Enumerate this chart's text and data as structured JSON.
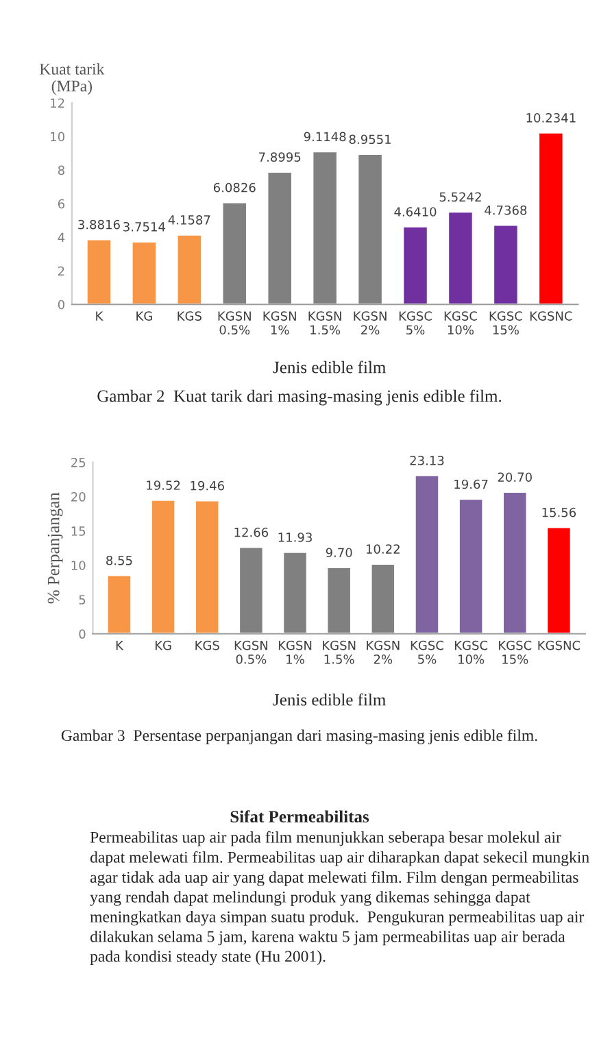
{
  "chart_data": [
    {
      "type": "bar",
      "ylabel": "Kuat tarik\n(MPa)",
      "xlabel": "Jenis edible film",
      "categories": [
        "K",
        "KG",
        "KGS",
        "KGSN\n0.5%",
        "KGSN\n1%",
        "KGSN\n1.5%",
        "KGSN\n2%",
        "KGSC\n5%",
        "KGSC\n10%",
        "KGSC\n15%",
        "KGSNC"
      ],
      "values": [
        3.8816,
        3.7514,
        4.1587,
        6.0826,
        7.8995,
        9.1148,
        8.9551,
        4.641,
        5.5242,
        4.7368,
        10.2341
      ],
      "value_labels": [
        "3.8816",
        "3.7514",
        "4.1587",
        "6.0826",
        "7.8995",
        "9.1148",
        "8.9551",
        "4.6410",
        "5.5242",
        "4.7368",
        "10.2341"
      ],
      "colors": [
        "#f79646",
        "#f79646",
        "#f79646",
        "#808080",
        "#808080",
        "#808080",
        "#808080",
        "#7030a0",
        "#7030a0",
        "#7030a0",
        "#ff0000"
      ],
      "ylim": [
        0,
        12
      ],
      "yticks": [
        0,
        2,
        4,
        6,
        8,
        10,
        12
      ],
      "grid": false,
      "legend": false,
      "annotations": [
        "Gambar 2  Kuat tarik dari masing-masing jenis edible film."
      ]
    },
    {
      "type": "bar",
      "ylabel": "% Perpanjangan",
      "xlabel": "Jenis edible film",
      "categories": [
        "K",
        "KG",
        "KGS",
        "KGSN\n0.5%",
        "KGSN\n1%",
        "KGSN\n1.5%",
        "KGSN\n2%",
        "KGSC\n5%",
        "KGSC\n10%",
        "KGSC\n15%",
        "KGSNC"
      ],
      "values": [
        8.55,
        19.52,
        19.46,
        12.66,
        11.93,
        9.7,
        10.22,
        23.13,
        19.67,
        20.7,
        15.56
      ],
      "value_labels": [
        "8.55",
        "19.52",
        "19.46",
        "12.66",
        "11.93",
        "9.70",
        "10.22",
        "23.13",
        "19.67",
        "20.70",
        "15.56"
      ],
      "colors": [
        "#f79646",
        "#f79646",
        "#f79646",
        "#808080",
        "#808080",
        "#808080",
        "#808080",
        "#8064a2",
        "#8064a2",
        "#8064a2",
        "#ff0000"
      ],
      "ylim": [
        0,
        25
      ],
      "yticks": [
        0,
        5,
        10,
        15,
        20,
        25
      ],
      "grid": false,
      "legend": false,
      "annotations": [
        "Gambar 3  Persentase perpanjangan dari masing-masing jenis edible film.",
        "Sifat Permeabilitas",
        "Permeabilitas uap air pada film menunjukkan seberapa besar molekul air dapat melewati film. Permeabilitas uap air diharapkan dapat sekecil mungkin agar tidak ada uap air yang dapat melewati film. Film dengan permeabilitas yang rendah dapat melindungi produk yang dikemas sehingga dapat meningkatkan daya simpan suatu produk.  Pengukuran permeabilitas uap air dilakukan selama 5 jam, karena waktu 5 jam permeabilitas uap air berada pada kondisi steady state (Hu 2001)."
      ]
    }
  ]
}
